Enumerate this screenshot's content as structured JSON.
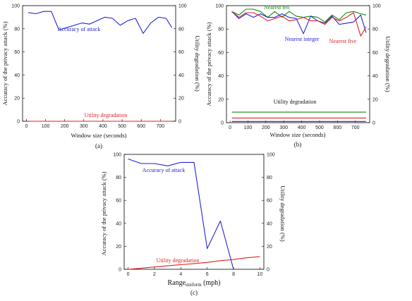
{
  "chart_data": [
    {
      "id": "a",
      "type": "line",
      "caption": "(a)",
      "xlabel": "Window size (seconds)",
      "ylabel": "Accuracy of the privacy attack (%)",
      "y2label": "Utility degradation (%)",
      "xlim": [
        -20,
        780
      ],
      "ylim": [
        0,
        100
      ],
      "y2lim": [
        0,
        100
      ],
      "xticks": [
        0,
        100,
        200,
        300,
        400,
        500,
        600,
        700
      ],
      "yticks": [
        0,
        20,
        40,
        60,
        80,
        100
      ],
      "y2ticks": [
        0,
        20,
        40,
        60,
        80,
        100
      ],
      "series": [
        {
          "name": "Accuracy of attack",
          "color": "#2222dd",
          "axis": "left",
          "x": [
            10,
            50,
            90,
            130,
            170,
            210,
            250,
            290,
            330,
            370,
            410,
            450,
            490,
            530,
            570,
            610,
            650,
            690,
            730,
            760
          ],
          "y": [
            94,
            93,
            95,
            95,
            79,
            81,
            83,
            85,
            84,
            87,
            90,
            89,
            83,
            87,
            89,
            76,
            85,
            90,
            89,
            81
          ]
        },
        {
          "name": "Utility degradation",
          "color": "#dd2222",
          "axis": "right",
          "x": [
            10,
            760
          ],
          "y": [
            0,
            0
          ]
        }
      ]
    },
    {
      "id": "b",
      "type": "line",
      "caption": "(b)",
      "xlabel": "Window size (seconds)",
      "ylabel": "Accuracy of the privacy attack (%)",
      "y2label": "Utility degradation (%)",
      "xlim": [
        -20,
        780
      ],
      "ylim": [
        0,
        100
      ],
      "y2lim": [
        0,
        100
      ],
      "xticks": [
        0,
        100,
        200,
        300,
        400,
        500,
        600,
        700
      ],
      "yticks": [
        0,
        20,
        40,
        60,
        80,
        100
      ],
      "y2ticks": [
        0,
        20,
        40,
        60,
        80,
        100
      ],
      "annotations": [
        "Nearest ten",
        "Nearest integer",
        "Nearest five",
        "Utility degradation"
      ],
      "series": [
        {
          "name": "Nearest ten",
          "color": "#118811",
          "axis": "left",
          "x": [
            10,
            50,
            90,
            130,
            170,
            210,
            250,
            290,
            330,
            370,
            410,
            450,
            490,
            530,
            570,
            610,
            650,
            690,
            730,
            760
          ],
          "y": [
            95,
            92,
            97,
            97,
            95,
            90,
            95,
            90,
            95,
            91,
            90,
            91,
            90,
            86,
            92,
            88,
            94,
            95,
            93,
            92
          ]
        },
        {
          "name": "Nearest integer",
          "color": "#2222dd",
          "axis": "left",
          "x": [
            10,
            50,
            90,
            130,
            170,
            210,
            250,
            290,
            330,
            370,
            410,
            450,
            490,
            530,
            570,
            610,
            650,
            690,
            730,
            760
          ],
          "y": [
            95,
            89,
            93,
            90,
            93,
            90,
            90,
            93,
            90,
            89,
            76,
            91,
            87,
            85,
            91,
            84,
            85,
            86,
            92,
            77
          ]
        },
        {
          "name": "Nearest five",
          "color": "#dd2222",
          "axis": "left",
          "x": [
            10,
            50,
            90,
            130,
            170,
            210,
            250,
            290,
            330,
            370,
            410,
            450,
            490,
            530,
            570,
            610,
            650,
            690,
            730,
            760
          ],
          "y": [
            95,
            90,
            94,
            94,
            91,
            87,
            89,
            91,
            87,
            88,
            90,
            87,
            87,
            84,
            90,
            87,
            90,
            94,
            74,
            82
          ]
        },
        {
          "name": "Utility degradation (nearest ten)",
          "color": "#118811",
          "axis": "right",
          "x": [
            10,
            760
          ],
          "y": [
            9,
            9
          ]
        },
        {
          "name": "Utility degradation (nearest five)",
          "color": "#dd2222",
          "axis": "right",
          "x": [
            10,
            760
          ],
          "y": [
            4,
            4
          ]
        },
        {
          "name": "Utility degradation (nearest integer)",
          "color": "#2222dd",
          "axis": "right",
          "x": [
            10,
            760
          ],
          "y": [
            1,
            1
          ]
        }
      ]
    },
    {
      "id": "c",
      "type": "line",
      "caption": "(c)",
      "xlabel_main": "Range",
      "xlabel_sub": "uniform",
      "xlabel_tail": " (mph)",
      "ylabel": "Accuracy of the privacy attack (%)",
      "y2label": "Utility degradation (%)",
      "xlim": [
        -0.3,
        10.3
      ],
      "ylim": [
        0,
        100
      ],
      "y2lim": [
        0,
        100
      ],
      "xticks": [
        0,
        2,
        4,
        6,
        8,
        10
      ],
      "yticks": [
        0,
        20,
        40,
        60,
        80,
        100
      ],
      "y2ticks": [
        0,
        20,
        40,
        60,
        80,
        100
      ],
      "series": [
        {
          "name": "Accuracy of attack",
          "color": "#2222dd",
          "axis": "left",
          "x": [
            0,
            1,
            2,
            3,
            4,
            5,
            6,
            7,
            8
          ],
          "y": [
            96,
            92,
            92,
            90,
            93,
            93,
            18,
            42,
            0
          ]
        },
        {
          "name": "Utility degradation",
          "color": "#dd2222",
          "axis": "right",
          "x": [
            0,
            1,
            2,
            3,
            4,
            5,
            6,
            7,
            8,
            9,
            10
          ],
          "y": [
            0,
            1,
            2,
            3,
            4,
            5,
            6,
            7.5,
            8.5,
            10,
            11
          ]
        }
      ]
    }
  ]
}
